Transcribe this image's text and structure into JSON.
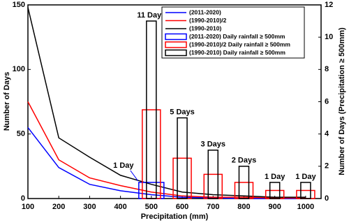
{
  "chart_data": {
    "type": "line",
    "x_label": "Precipitation (mm)",
    "y_label": "Number of Days",
    "y2_label": "Number of Days (Precipitation ≥ 500mm)",
    "x": [
      100,
      200,
      300,
      400,
      500,
      600,
      700,
      800,
      900,
      1000
    ],
    "xlim": [
      100,
      1050
    ],
    "xticks": [
      100,
      200,
      300,
      400,
      500,
      600,
      700,
      800,
      900,
      1000
    ],
    "ylim": [
      0,
      150
    ],
    "yticks": [
      0,
      50,
      100,
      150
    ],
    "y2lim": [
      0,
      12
    ],
    "y2ticks": [
      0,
      2,
      4,
      6,
      8,
      10,
      12
    ],
    "legend": "upper right",
    "series": [
      {
        "name": "(2011-2020)",
        "color": "#0000ff",
        "kind": "line",
        "values": [
          55,
          24,
          11,
          6,
          3,
          1,
          0.5,
          0,
          0,
          0
        ]
      },
      {
        "name": "(1990-2010)/2",
        "color": "#ff0000",
        "kind": "line",
        "values": [
          75,
          30,
          16,
          10,
          5,
          2,
          1,
          1,
          0.5,
          0.5
        ]
      },
      {
        "name": "(1990-2010)",
        "color": "#000000",
        "kind": "line",
        "values": [
          148,
          47,
          32,
          18,
          11,
          5,
          3,
          2,
          1,
          1
        ]
      },
      {
        "name": "(2011-2020) Daily rainfall  ≥ 500mm",
        "color": "#0000ff",
        "kind": "bar",
        "axis": "y2",
        "values": [
          null,
          null,
          null,
          null,
          1,
          null,
          null,
          null,
          null,
          null
        ],
        "value_labels": [
          null,
          null,
          null,
          null,
          "1 Day",
          null,
          null,
          null,
          null,
          null
        ]
      },
      {
        "name": "(1990-2010)/2 Daily rainfall  ≥ 500mm",
        "color": "#ff0000",
        "kind": "bar",
        "axis": "y2",
        "values": [
          null,
          null,
          null,
          null,
          5.5,
          2.5,
          1.5,
          1,
          0.5,
          0.5
        ]
      },
      {
        "name": "(1990-2010) Daily rainfall  ≥ 500mm",
        "color": "#000000",
        "kind": "bar",
        "axis": "y2",
        "values": [
          null,
          null,
          null,
          null,
          11,
          5,
          3,
          2,
          1,
          1
        ],
        "value_labels": [
          null,
          null,
          null,
          null,
          "11 Days",
          "5 Days",
          "3 Days",
          "2 Days",
          "1 Day",
          "1 Day"
        ]
      }
    ]
  }
}
